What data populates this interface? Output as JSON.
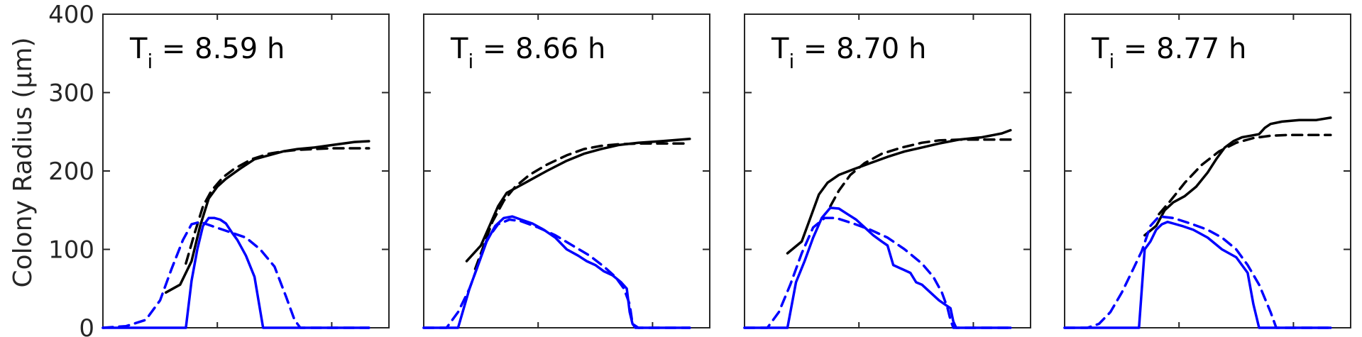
{
  "chart_data": {
    "type": "line",
    "ylabel": "Colony Radius (μm)",
    "ylim": [
      0,
      400
    ],
    "yticks": [
      0,
      100,
      200,
      300,
      400
    ],
    "grid": false,
    "colors": {
      "total": "#000000",
      "core": "#0000ff",
      "axis": "#262626"
    },
    "panels": [
      {
        "title_main": "T",
        "title_sub": "i",
        "title_rest": " = 8.59 h",
        "xlim": [
          0,
          1
        ],
        "series": [
          {
            "color": "#000000",
            "style": "solid",
            "x": [
              0.22,
              0.27,
              0.31,
              0.34,
              0.37,
              0.4,
              0.43,
              0.48,
              0.53,
              0.58,
              0.63,
              0.68,
              0.74,
              0.8,
              0.88,
              0.93
            ],
            "y": [
              45,
              55,
              85,
              130,
              165,
              180,
              190,
              203,
              215,
              220,
              225,
              228,
              230,
              233,
              237,
              238
            ]
          },
          {
            "color": "#000000",
            "style": "dashed",
            "x": [
              0.29,
              0.32,
              0.35,
              0.38,
              0.42,
              0.46,
              0.52,
              0.58,
              0.63,
              0.68,
              0.74,
              0.8,
              0.88,
              0.93
            ],
            "y": [
              82,
              120,
              155,
              175,
              192,
              203,
              215,
              222,
              225,
              227,
              228,
              229,
              229,
              229
            ]
          },
          {
            "color": "#0000ff",
            "style": "solid",
            "x": [
              0.0,
              0.22,
              0.29,
              0.31,
              0.33,
              0.35,
              0.37,
              0.39,
              0.41,
              0.43,
              0.45,
              0.47,
              0.5,
              0.53,
              0.56,
              0.61,
              0.66,
              0.75,
              0.85,
              0.93
            ],
            "y": [
              0,
              0,
              0,
              60,
              100,
              130,
              140,
              140,
              138,
              133,
              122,
              112,
              92,
              65,
              0,
              0,
              0,
              0,
              0,
              0
            ]
          },
          {
            "color": "#0000ff",
            "style": "dashed",
            "x": [
              0.0,
              0.08,
              0.15,
              0.2,
              0.24,
              0.28,
              0.31,
              0.34,
              0.38,
              0.42,
              0.46,
              0.5,
              0.55,
              0.6,
              0.64,
              0.67,
              0.69,
              0.71,
              0.75,
              0.85,
              0.93
            ],
            "y": [
              0,
              2,
              10,
              35,
              75,
              112,
              132,
              135,
              130,
              125,
              120,
              115,
              100,
              78,
              40,
              10,
              0,
              0,
              0,
              0,
              0
            ]
          }
        ]
      },
      {
        "title_main": "T",
        "title_sub": "i",
        "title_rest": " = 8.66 h",
        "xlim": [
          0,
          1
        ],
        "series": [
          {
            "color": "#000000",
            "style": "solid",
            "x": [
              0.15,
              0.2,
              0.23,
              0.26,
              0.29,
              0.33,
              0.37,
              0.43,
              0.5,
              0.56,
              0.62,
              0.68,
              0.75,
              0.83,
              0.9,
              0.93
            ],
            "y": [
              85,
              105,
              130,
              155,
              172,
              180,
              188,
              200,
              213,
              222,
              228,
              233,
              236,
              238,
              240,
              241
            ]
          },
          {
            "color": "#000000",
            "style": "dashed",
            "x": [
              0.18,
              0.21,
              0.24,
              0.28,
              0.32,
              0.37,
              0.43,
              0.5,
              0.56,
              0.62,
              0.68,
              0.75,
              0.83,
              0.9,
              0.93
            ],
            "y": [
              75,
              105,
              135,
              162,
              180,
              195,
              208,
              220,
              228,
              232,
              234,
              235,
              235,
              235,
              235
            ]
          },
          {
            "color": "#0000ff",
            "style": "solid",
            "x": [
              0.0,
              0.12,
              0.16,
              0.19,
              0.22,
              0.25,
              0.28,
              0.31,
              0.34,
              0.38,
              0.42,
              0.46,
              0.5,
              0.54,
              0.57,
              0.6,
              0.63,
              0.66,
              0.69,
              0.71,
              0.72,
              0.73,
              0.74,
              0.76,
              0.85,
              0.93
            ],
            "y": [
              0,
              0,
              50,
              80,
              110,
              130,
              140,
              142,
              138,
              133,
              125,
              115,
              100,
              92,
              85,
              80,
              72,
              67,
              58,
              50,
              20,
              5,
              0,
              0,
              0,
              0
            ]
          },
          {
            "color": "#0000ff",
            "style": "dashed",
            "x": [
              0.0,
              0.08,
              0.12,
              0.16,
              0.19,
              0.22,
              0.26,
              0.3,
              0.34,
              0.4,
              0.46,
              0.52,
              0.58,
              0.63,
              0.67,
              0.7,
              0.72,
              0.73,
              0.75,
              0.85,
              0.93
            ],
            "y": [
              0,
              0,
              20,
              50,
              80,
              112,
              132,
              138,
              136,
              128,
              118,
              105,
              92,
              78,
              65,
              50,
              30,
              5,
              0,
              0,
              0
            ]
          }
        ]
      },
      {
        "title_main": "T",
        "title_sub": "i",
        "title_rest": " = 8.70 h",
        "xlim": [
          0,
          1
        ],
        "series": [
          {
            "color": "#000000",
            "style": "solid",
            "x": [
              0.15,
              0.2,
              0.23,
              0.26,
              0.29,
              0.33,
              0.38,
              0.44,
              0.5,
              0.56,
              0.62,
              0.68,
              0.75,
              0.83,
              0.9,
              0.93
            ],
            "y": [
              95,
              110,
              140,
              170,
              185,
              195,
              202,
              210,
              218,
              225,
              230,
              235,
              240,
              243,
              248,
              252
            ]
          },
          {
            "color": "#000000",
            "style": "dashed",
            "x": [
              0.3,
              0.33,
              0.37,
              0.42,
              0.48,
              0.55,
              0.62,
              0.68,
              0.75,
              0.83,
              0.9,
              0.93
            ],
            "y": [
              155,
              175,
              195,
              210,
              222,
              230,
              236,
              239,
              240,
              240,
              240,
              240
            ]
          },
          {
            "color": "#0000ff",
            "style": "solid",
            "x": [
              0.0,
              0.15,
              0.18,
              0.21,
              0.24,
              0.27,
              0.3,
              0.33,
              0.36,
              0.39,
              0.42,
              0.45,
              0.48,
              0.5,
              0.52,
              0.55,
              0.58,
              0.6,
              0.62,
              0.65,
              0.68,
              0.7,
              0.72,
              0.73,
              0.74,
              0.76,
              0.85,
              0.93
            ],
            "y": [
              0,
              0,
              58,
              85,
              115,
              140,
              153,
              152,
              145,
              138,
              128,
              118,
              110,
              105,
              80,
              75,
              70,
              58,
              55,
              45,
              35,
              30,
              25,
              8,
              0,
              0,
              0,
              0
            ]
          },
          {
            "color": "#0000ff",
            "style": "dashed",
            "x": [
              0.0,
              0.08,
              0.12,
              0.16,
              0.2,
              0.24,
              0.28,
              0.32,
              0.38,
              0.44,
              0.5,
              0.56,
              0.62,
              0.66,
              0.69,
              0.71,
              0.72,
              0.73,
              0.75,
              0.85,
              0.93
            ],
            "y": [
              0,
              0,
              20,
              55,
              95,
              128,
              140,
              140,
              133,
              125,
              115,
              100,
              82,
              65,
              45,
              25,
              10,
              0,
              0,
              0,
              0
            ]
          }
        ]
      },
      {
        "title_main": "T",
        "title_sub": "i",
        "title_rest": " = 8.77 h",
        "xlim": [
          0,
          1
        ],
        "series": [
          {
            "color": "#000000",
            "style": "solid",
            "x": [
              0.28,
              0.32,
              0.35,
              0.38,
              0.42,
              0.46,
              0.5,
              0.53,
              0.56,
              0.59,
              0.62,
              0.65,
              0.68,
              0.7,
              0.72,
              0.76,
              0.82,
              0.88,
              0.93
            ],
            "y": [
              118,
              130,
              150,
              160,
              168,
              180,
              198,
              215,
              230,
              238,
              243,
              245,
              247,
              255,
              260,
              263,
              265,
              265,
              268
            ]
          },
          {
            "color": "#000000",
            "style": "dashed",
            "x": [
              0.33,
              0.37,
              0.42,
              0.48,
              0.54,
              0.6,
              0.66,
              0.72,
              0.78,
              0.85,
              0.93
            ],
            "y": [
              145,
              162,
              185,
              208,
              225,
              236,
              242,
              245,
              246,
              246,
              246
            ]
          },
          {
            "color": "#0000ff",
            "style": "solid",
            "x": [
              0.0,
              0.26,
              0.28,
              0.3,
              0.32,
              0.34,
              0.36,
              0.38,
              0.41,
              0.45,
              0.5,
              0.55,
              0.6,
              0.64,
              0.66,
              0.68,
              0.72,
              0.8,
              0.88,
              0.93
            ],
            "y": [
              0,
              0,
              100,
              110,
              125,
              132,
              135,
              133,
              130,
              125,
              115,
              100,
              90,
              70,
              30,
              0,
              0,
              0,
              0,
              0
            ]
          },
          {
            "color": "#0000ff",
            "style": "dashed",
            "x": [
              0.0,
              0.08,
              0.12,
              0.16,
              0.2,
              0.24,
              0.27,
              0.3,
              0.33,
              0.38,
              0.44,
              0.5,
              0.55,
              0.6,
              0.64,
              0.68,
              0.72,
              0.74,
              0.76,
              0.85,
              0.93
            ],
            "y": [
              0,
              0,
              5,
              20,
              45,
              75,
              98,
              130,
              142,
              140,
              133,
              125,
              115,
              100,
              80,
              55,
              20,
              0,
              0,
              0,
              0
            ]
          }
        ]
      }
    ]
  }
}
